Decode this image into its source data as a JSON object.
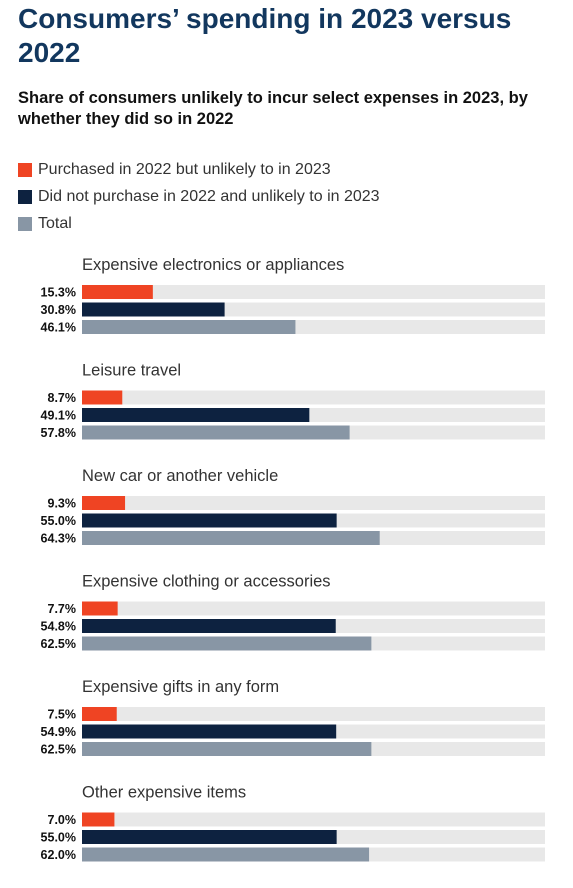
{
  "title": "Consumers’ spending in 2023 versus 2022",
  "subtitle": "Share of consumers unlikely to incur select expenses in 2023, by whether they did so in 2022",
  "colors": {
    "purchased": "#ef4423",
    "not_purchased": "#0d2240",
    "total": "#8896a5",
    "track": "#e8e8e8",
    "label": "#333333",
    "value": "#111111"
  },
  "chart_data": {
    "type": "bar",
    "orientation": "horizontal",
    "xlim": [
      0,
      100
    ],
    "legend_position": "top-left",
    "series": [
      {
        "name": "Purchased in 2022 but unlikely to in 2023",
        "color": "#ef4423"
      },
      {
        "name": "Did not purchase in 2022 and unlikely to in 2023",
        "color": "#0d2240"
      },
      {
        "name": "Total",
        "color": "#8896a5"
      }
    ],
    "groups": [
      {
        "category": "Expensive electronics or appliances",
        "values": [
          15.3,
          30.8,
          46.1
        ],
        "labels": [
          "15.3%",
          "30.8%",
          "46.1%"
        ]
      },
      {
        "category": "Leisure travel",
        "values": [
          8.7,
          49.1,
          57.8
        ],
        "labels": [
          "8.7%",
          "49.1%",
          "57.8%"
        ]
      },
      {
        "category": "New car or another vehicle",
        "values": [
          9.3,
          55.0,
          64.3
        ],
        "labels": [
          "9.3%",
          "55.0%",
          "64.3%"
        ]
      },
      {
        "category": "Expensive clothing or accessories",
        "values": [
          7.7,
          54.8,
          62.5
        ],
        "labels": [
          "7.7%",
          "54.8%",
          "62.5%"
        ]
      },
      {
        "category": "Expensive gifts in any form",
        "values": [
          7.5,
          54.9,
          62.5
        ],
        "labels": [
          "7.5%",
          "54.9%",
          "62.5%"
        ]
      },
      {
        "category": "Other expensive items",
        "values": [
          7.0,
          55.0,
          62.0
        ],
        "labels": [
          "7.0%",
          "55.0%",
          "62.0%"
        ]
      }
    ]
  }
}
